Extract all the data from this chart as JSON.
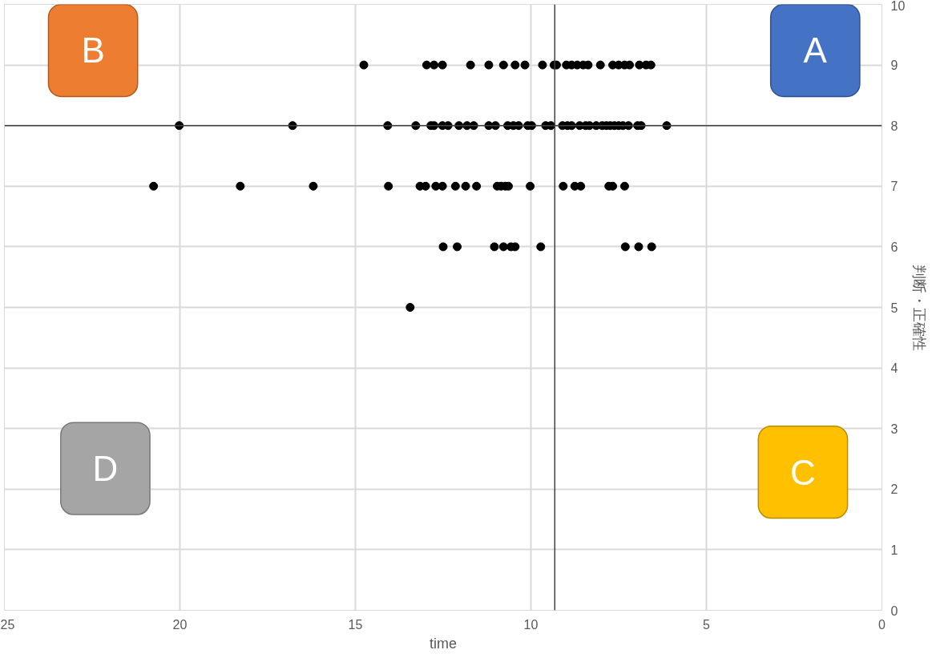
{
  "chart_data": {
    "type": "scatter",
    "xlabel": "time",
    "ylabel": "判断・正確性",
    "xlim": [
      25,
      0
    ],
    "xticks": [
      25,
      20,
      15,
      10,
      5,
      0
    ],
    "ylim": [
      0,
      10
    ],
    "yticks": [
      0,
      1,
      2,
      3,
      4,
      5,
      6,
      7,
      8,
      9,
      10
    ],
    "grid": true,
    "marker": "circle",
    "series": [
      {
        "color": "#000000",
        "x": [
          14.76,
          12.97,
          12.76,
          12.52,
          11.72,
          11.2,
          10.78,
          10.45,
          10.17,
          9.67,
          9.34,
          9.27,
          8.99,
          8.84,
          8.68,
          8.51,
          8.37,
          8.02,
          7.67,
          7.5,
          7.33,
          7.19,
          6.91,
          6.72,
          6.58,
          20.02,
          16.79,
          14.08,
          13.28,
          12.85,
          12.76,
          12.52,
          12.36,
          12.05,
          11.82,
          11.63,
          11.2,
          11.01,
          10.66,
          10.5,
          10.35,
          10.09,
          9.98,
          9.58,
          9.43,
          9.1,
          8.96,
          8.84,
          8.61,
          8.44,
          8.33,
          8.14,
          7.97,
          7.85,
          7.74,
          7.62,
          7.5,
          7.38,
          7.22,
          6.96,
          6.86,
          6.13,
          20.75,
          18.28,
          16.2,
          14.06,
          13.16,
          13.0,
          12.71,
          12.52,
          12.15,
          11.86,
          11.55,
          10.96,
          10.85,
          10.73,
          10.64,
          10.02,
          9.08,
          8.75,
          8.58,
          7.78,
          7.67,
          7.33,
          12.5,
          12.1,
          11.04,
          10.78,
          10.57,
          10.45,
          9.72,
          7.31,
          6.93,
          6.56,
          13.44
        ],
        "values": [
          9,
          9,
          9,
          9,
          9,
          9,
          9,
          9,
          9,
          9,
          9,
          9,
          9,
          9,
          9,
          9,
          9,
          9,
          9,
          9,
          9,
          9,
          9,
          9,
          9,
          8,
          8,
          8,
          8,
          8,
          8,
          8,
          8,
          8,
          8,
          8,
          8,
          8,
          8,
          8,
          8,
          8,
          8,
          8,
          8,
          8,
          8,
          8,
          8,
          8,
          8,
          8,
          8,
          8,
          8,
          8,
          8,
          8,
          8,
          8,
          8,
          8,
          7,
          7,
          7,
          7,
          7,
          7,
          7,
          7,
          7,
          7,
          7,
          7,
          7,
          7,
          7,
          7,
          7,
          7,
          7,
          7,
          7,
          7,
          6,
          6,
          6,
          6,
          6,
          6,
          6,
          6,
          6,
          6,
          5
        ]
      }
    ],
    "ref_lines": [
      {
        "axis": "y",
        "value": 8,
        "color": "#404040"
      },
      {
        "axis": "x",
        "value": 9.32,
        "color": "#404040"
      }
    ],
    "annotations": [
      "A",
      "B",
      "C",
      "D"
    ]
  }
}
